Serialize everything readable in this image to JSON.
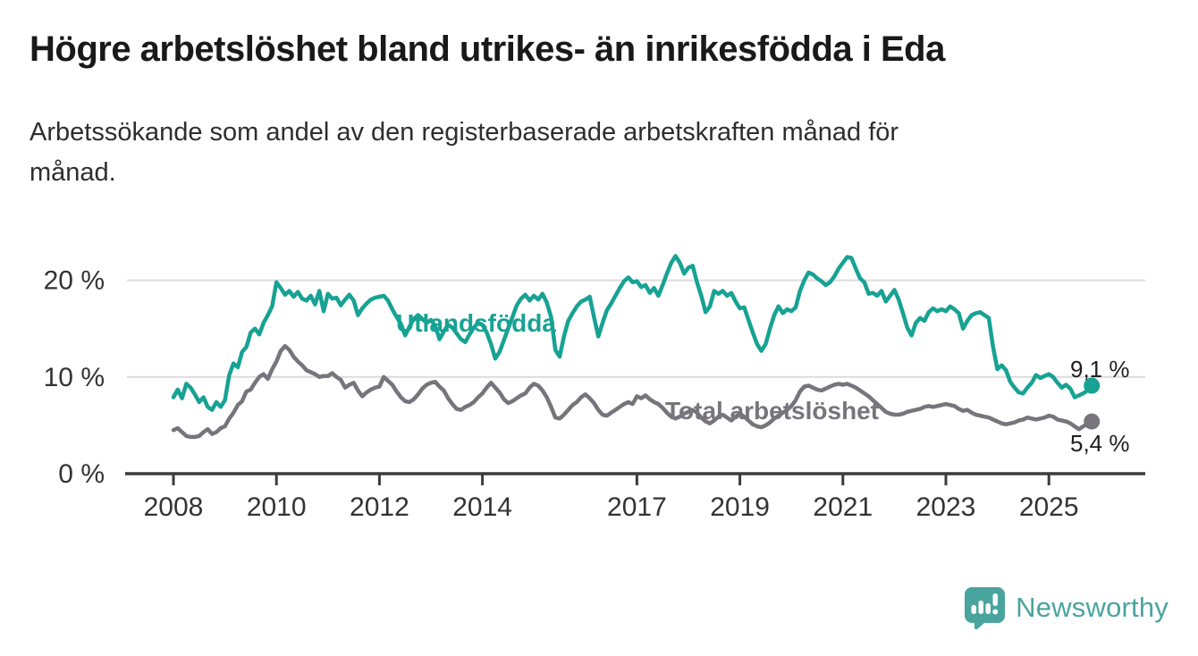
{
  "header": {
    "title": "Högre arbetslöshet bland utrikes- än inrikesfödda i Eda",
    "subtitle": "Arbetssökande som andel av den registerbaserade arbetskraften månad för\nmånad."
  },
  "footer": {
    "brand": "Newsworthy",
    "logo_icon": "bar-chart-speech-bubble-icon",
    "logo_color": "#4aa49e"
  },
  "colors": {
    "series_foreign_born": "#17a293",
    "series_total": "#77757b",
    "gridline": "#dcdcdc",
    "axis": "#3c3c3c",
    "tick_label": "#333333"
  },
  "chart_data": {
    "type": "line",
    "title": "Högre arbetslöshet bland utrikes- än inrikesfödda i Eda",
    "subtitle": "Arbetssökande som andel av den registerbaserade arbetskraften månad för månad.",
    "x_unit": "month",
    "x_start_year": 2008,
    "x_end_year": 2025.833,
    "ylim": [
      0,
      24
    ],
    "grid": "horizontal",
    "y_ticks": [
      {
        "value": 0,
        "label": "0 %"
      },
      {
        "value": 10,
        "label": "10 %"
      },
      {
        "value": 20,
        "label": "20 %"
      }
    ],
    "x_ticks": [
      {
        "value": 2008,
        "label": "2008"
      },
      {
        "value": 2010,
        "label": "2010"
      },
      {
        "value": 2012,
        "label": "2012"
      },
      {
        "value": 2014,
        "label": "2014"
      },
      {
        "value": 2017,
        "label": "2017"
      },
      {
        "value": 2019,
        "label": "2019"
      },
      {
        "value": 2021,
        "label": "2021"
      },
      {
        "value": 2023,
        "label": "2023"
      },
      {
        "value": 2025,
        "label": "2025"
      }
    ],
    "series": [
      {
        "name": "Utlandsfödda",
        "color": "#17a293",
        "end_label": "9,1 %",
        "end_value": 9.1,
        "values": [
          7.9,
          8.7,
          7.8,
          9.3,
          8.9,
          8.2,
          7.4,
          7.9,
          6.9,
          6.6,
          7.4,
          6.9,
          7.6,
          10.2,
          11.4,
          11.0,
          12.6,
          13.1,
          14.6,
          15.0,
          14.4,
          15.6,
          16.4,
          17.3,
          19.8,
          19.2,
          18.5,
          18.9,
          18.3,
          18.8,
          18.1,
          17.9,
          18.4,
          17.5,
          18.9,
          16.8,
          18.6,
          18.1,
          18.2,
          17.4,
          18.0,
          18.5,
          17.9,
          16.4,
          17.1,
          17.6,
          18.0,
          18.2,
          18.3,
          18.4,
          17.9,
          17.0,
          16.2,
          15.5,
          14.3,
          15.2,
          16.0,
          16.4,
          16.0,
          15.6,
          15.9,
          15.3,
          13.9,
          14.7,
          15.4,
          15.1,
          14.5,
          13.9,
          13.6,
          14.4,
          15.1,
          15.6,
          15.4,
          14.6,
          13.4,
          11.9,
          12.6,
          13.8,
          15.0,
          16.2,
          17.4,
          18.1,
          18.5,
          17.9,
          18.4,
          18.0,
          18.6,
          17.7,
          16.2,
          12.8,
          12.1,
          14.2,
          15.8,
          16.6,
          17.3,
          17.8,
          18.0,
          18.3,
          16.2,
          14.2,
          15.6,
          16.9,
          17.6,
          18.4,
          19.2,
          19.9,
          20.3,
          19.8,
          19.9,
          19.3,
          19.5,
          18.7,
          19.2,
          18.4,
          19.5,
          20.7,
          21.8,
          22.5,
          21.8,
          20.7,
          21.3,
          21.5,
          19.8,
          18.4,
          16.7,
          17.3,
          18.9,
          18.6,
          18.9,
          18.4,
          18.7,
          17.8,
          17.1,
          17.2,
          15.9,
          14.6,
          13.4,
          12.7,
          13.4,
          15.0,
          16.4,
          17.3,
          16.6,
          17.0,
          16.8,
          17.2,
          18.9,
          20.0,
          20.8,
          20.6,
          20.2,
          19.9,
          19.5,
          19.8,
          20.4,
          21.2,
          21.8,
          22.4,
          22.3,
          21.2,
          20.2,
          19.8,
          18.6,
          18.7,
          18.4,
          18.9,
          17.8,
          18.4,
          19.0,
          18.0,
          16.6,
          15.1,
          14.3,
          15.6,
          16.1,
          15.8,
          16.7,
          17.1,
          16.8,
          17.0,
          16.8,
          17.3,
          17.0,
          16.6,
          15.0,
          15.8,
          16.4,
          16.6,
          16.7,
          16.4,
          16.1,
          13.1,
          10.8,
          11.2,
          10.7,
          9.5,
          8.9,
          8.4,
          8.3,
          8.9,
          9.4,
          10.2,
          9.9,
          10.1,
          10.3,
          10.0,
          9.4,
          8.9,
          9.2,
          8.8,
          7.9,
          8.1,
          8.3,
          8.6,
          9.1
        ]
      },
      {
        "name": "Total arbetslöshet",
        "color": "#77757b",
        "end_label": "5,4 %",
        "end_value": 5.4,
        "values": [
          4.5,
          4.7,
          4.3,
          3.9,
          3.8,
          3.8,
          3.9,
          4.3,
          4.6,
          4.1,
          4.3,
          4.7,
          4.9,
          5.7,
          6.3,
          7.1,
          7.5,
          8.5,
          8.7,
          9.4,
          10.0,
          10.3,
          9.8,
          10.8,
          11.6,
          12.7,
          13.2,
          12.8,
          12.1,
          11.6,
          11.2,
          10.7,
          10.5,
          10.3,
          10.0,
          10.1,
          10.1,
          10.4,
          10.0,
          9.7,
          8.9,
          9.2,
          9.4,
          8.6,
          8.0,
          8.4,
          8.7,
          8.9,
          9.0,
          10.0,
          9.6,
          9.2,
          8.5,
          7.9,
          7.5,
          7.4,
          7.7,
          8.2,
          8.8,
          9.2,
          9.4,
          9.5,
          9.0,
          8.6,
          7.8,
          7.2,
          6.7,
          6.6,
          6.9,
          7.1,
          7.4,
          7.9,
          8.3,
          8.9,
          9.4,
          8.9,
          8.4,
          7.7,
          7.3,
          7.5,
          7.8,
          8.1,
          8.3,
          8.9,
          9.3,
          9.1,
          8.6,
          7.9,
          6.9,
          5.8,
          5.7,
          6.1,
          6.6,
          7.1,
          7.4,
          7.9,
          8.2,
          7.8,
          7.3,
          6.6,
          6.1,
          6.0,
          6.3,
          6.6,
          6.9,
          7.2,
          7.4,
          7.2,
          8.0,
          7.8,
          8.1,
          7.7,
          7.4,
          7.2,
          6.8,
          6.3,
          5.9,
          5.7,
          5.9,
          6.2,
          6.4,
          6.6,
          6.3,
          5.8,
          5.4,
          5.2,
          5.5,
          5.9,
          6.1,
          5.8,
          5.5,
          5.9,
          6.2,
          5.9,
          5.5,
          5.1,
          4.9,
          4.8,
          5.0,
          5.3,
          5.7,
          6.0,
          6.3,
          6.6,
          7.0,
          7.6,
          8.5,
          9.0,
          9.1,
          8.9,
          8.7,
          8.6,
          8.8,
          9.0,
          9.2,
          9.3,
          9.2,
          9.3,
          9.1,
          8.9,
          8.6,
          8.3,
          8.0,
          7.6,
          7.2,
          6.8,
          6.4,
          6.2,
          6.1,
          6.1,
          6.2,
          6.4,
          6.5,
          6.6,
          6.7,
          6.9,
          7.0,
          6.9,
          7.0,
          7.1,
          7.2,
          7.1,
          7.0,
          6.7,
          6.5,
          6.6,
          6.3,
          6.1,
          6.0,
          5.9,
          5.8,
          5.6,
          5.4,
          5.2,
          5.1,
          5.2,
          5.3,
          5.5,
          5.6,
          5.8,
          5.7,
          5.6,
          5.7,
          5.8,
          6.0,
          5.9,
          5.6,
          5.5,
          5.4,
          5.2,
          4.9,
          4.6,
          4.9,
          5.1,
          5.4
        ]
      }
    ]
  }
}
